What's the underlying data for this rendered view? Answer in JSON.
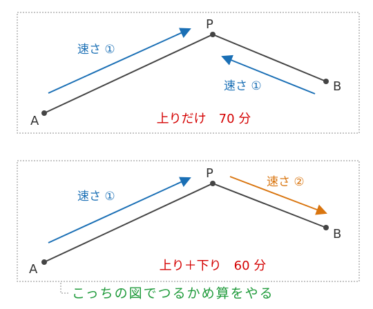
{
  "panels": [
    {
      "points": {
        "a": "A",
        "p": "P",
        "b": "B"
      },
      "arrows": [
        "速さ ①",
        "速さ ①"
      ],
      "note": "上りだけ　70 分"
    },
    {
      "points": {
        "a": "A",
        "p": "P",
        "b": "B"
      },
      "arrows": [
        "速さ ①",
        "速さ ②"
      ],
      "note": "上り＋下り　60 分"
    }
  ],
  "caption": "こっちの図でつるかめ算をやる"
}
